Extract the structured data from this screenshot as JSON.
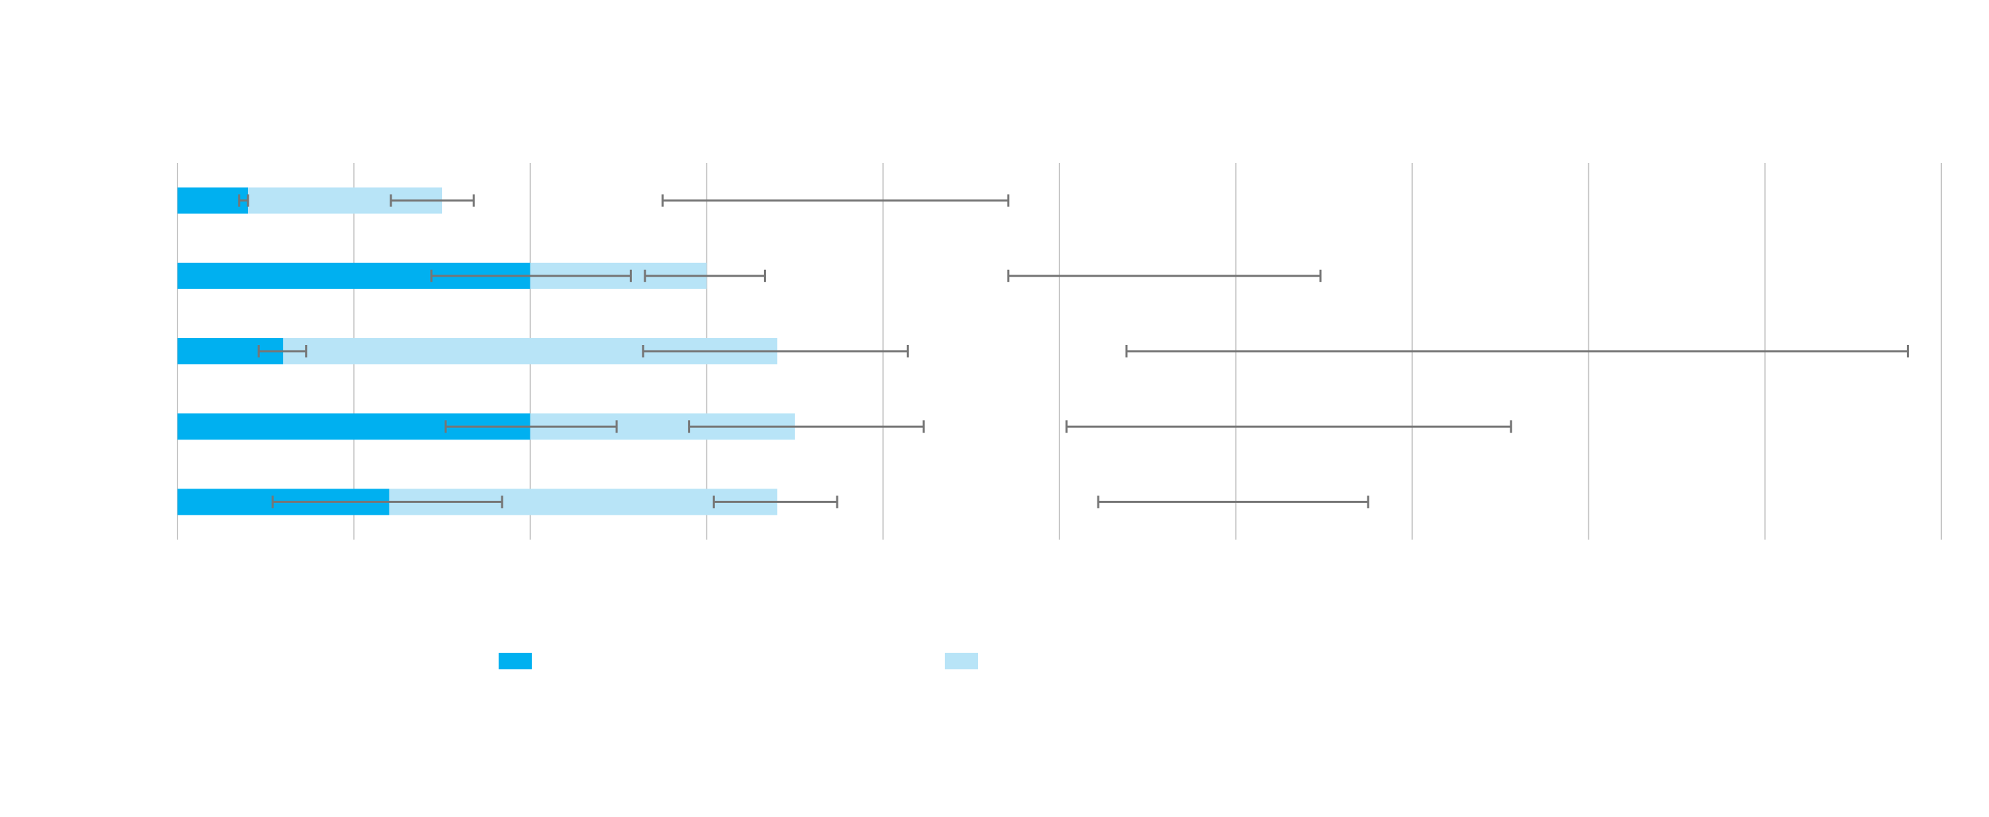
{
  "chart_data": {
    "type": "bar",
    "orientation": "horizontal",
    "stacked": true,
    "title": "",
    "xlabel": "",
    "ylabel": "",
    "xlim": [
      0,
      10
    ],
    "grid": true,
    "legend_placement": "bottom-center",
    "categories": [
      "",
      "",
      "",
      "",
      ""
    ],
    "series": [
      {
        "color": "#00b0f0",
        "values": [
          0.4,
          2.0,
          0.6,
          2.0,
          1.2
        ],
        "error_bars": [
          [
            0.35,
            0.4
          ],
          [
            1.44,
            2.57
          ],
          [
            0.46,
            0.73
          ],
          [
            1.52,
            2.49
          ],
          [
            0.54,
            1.84
          ]
        ]
      },
      {
        "color": "#b8e4f7",
        "values": [
          1.1,
          1.0,
          2.8,
          1.5,
          2.2
        ],
        "error_bars": [
          [
            1.21,
            1.68
          ],
          [
            2.65,
            3.33
          ],
          [
            2.64,
            4.14
          ],
          [
            2.9,
            4.23
          ],
          [
            3.04,
            3.74
          ]
        ]
      }
    ],
    "extra_error_bars": [
      [
        2.75,
        4.71
      ],
      [
        4.71,
        6.48
      ],
      [
        5.38,
        9.81
      ],
      [
        5.04,
        7.56
      ],
      [
        5.22,
        6.75
      ]
    ]
  }
}
